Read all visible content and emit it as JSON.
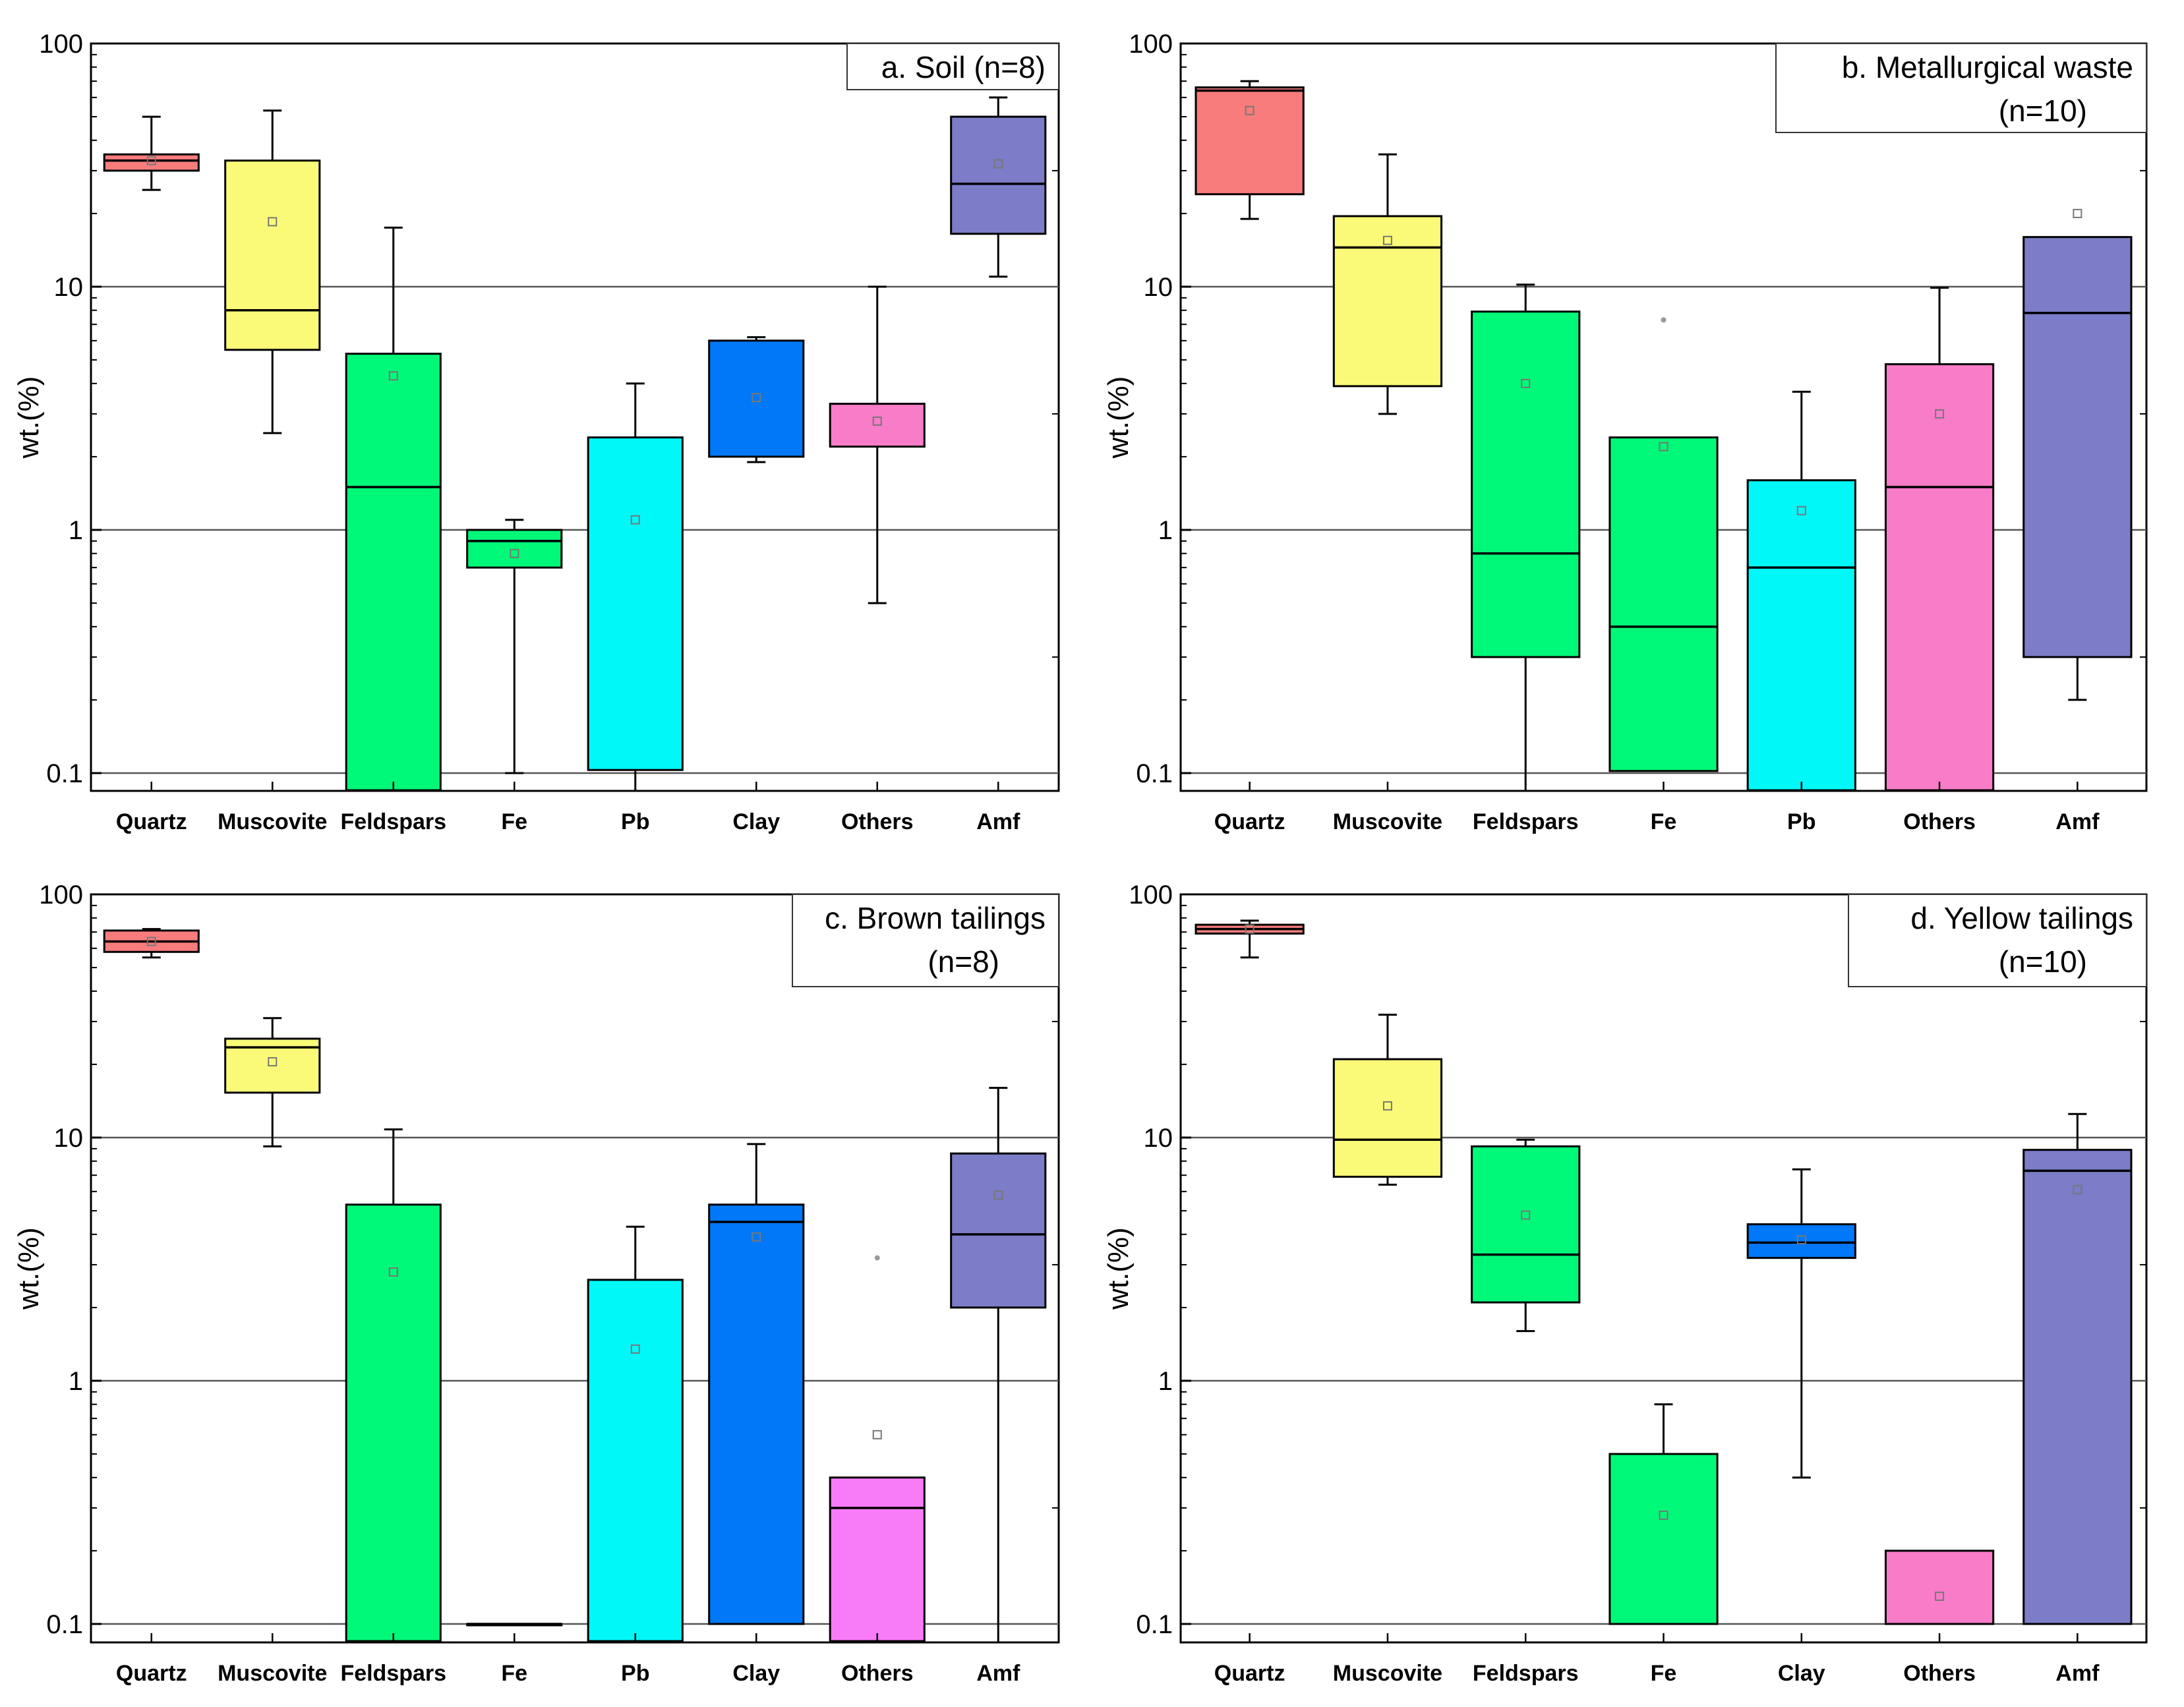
{
  "chart_data": [
    {
      "type": "boxplot",
      "title": "a. Soil (n=8)",
      "title_lines": [
        "a. Soil (n=8)"
      ],
      "ylabel": "wt.(%)",
      "yscale": "log",
      "ylim": [
        0.085,
        100
      ],
      "yticks": [
        "100",
        "10",
        "1",
        "0.1"
      ],
      "gridlines": [
        10,
        1,
        0.1
      ],
      "categories": [
        "Quartz",
        "Muscovite",
        "Feldspars",
        "Fe",
        "Pb",
        "Clay",
        "Others",
        "Amf"
      ],
      "boxes": [
        {
          "name": "Quartz",
          "color": "#f87c7c",
          "q1": 30,
          "median": 33,
          "q3": 35,
          "whisker_low": 25,
          "whisker_high": 50,
          "mean": 33
        },
        {
          "name": "Muscovite",
          "color": "#fafa78",
          "q1": 5.5,
          "median": 8,
          "q3": 33,
          "whisker_low": 2.5,
          "whisker_high": 53,
          "mean": 18.5
        },
        {
          "name": "Feldspars",
          "color": "#00f878",
          "q1": 0.085,
          "median": 1.5,
          "q3": 5.3,
          "whisker_low": null,
          "whisker_high": 17.5,
          "mean": 4.3
        },
        {
          "name": "Fe",
          "color": "#00f878",
          "q1": 0.7,
          "median": 0.9,
          "q3": 1.0,
          "whisker_low": 0.1,
          "whisker_high": 1.1,
          "mean": 0.8
        },
        {
          "name": "Pb",
          "color": "#00f8f8",
          "q1": 0.103,
          "median": null,
          "q3": 2.4,
          "whisker_low": 0.085,
          "whisker_high": 4.0,
          "mean": 1.1
        },
        {
          "name": "Clay",
          "color": "#0078f8",
          "q1": 2.0,
          "median": null,
          "q3": 6.0,
          "whisker_low": 1.9,
          "whisker_high": 6.2,
          "mean": 3.5
        },
        {
          "name": "Others",
          "color": "#f87cc8",
          "q1": 2.2,
          "median": null,
          "q3": 3.3,
          "whisker_low": 0.5,
          "whisker_high": 10,
          "mean": 2.8
        },
        {
          "name": "Amf",
          "color": "#7c7cc8",
          "q1": 16.5,
          "median": 26.5,
          "q3": 50,
          "whisker_low": 11,
          "whisker_high": 60,
          "mean": 32
        }
      ]
    },
    {
      "type": "boxplot",
      "title": "b. Metallurgical waste (n=10)",
      "title_lines": [
        "b. Metallurgical waste",
        "(n=10)"
      ],
      "ylabel": "wt.(%)",
      "yscale": "log",
      "ylim": [
        0.085,
        100
      ],
      "yticks": [
        "100",
        "10",
        "1",
        "0.1"
      ],
      "gridlines": [
        10,
        1,
        0.1
      ],
      "categories": [
        "Quartz",
        "Muscovite",
        "Feldspars",
        "Fe",
        "Pb",
        "Others",
        "Amf"
      ],
      "boxes": [
        {
          "name": "Quartz",
          "color": "#f87c7c",
          "q1": 24,
          "median": 64,
          "q3": 66,
          "whisker_low": 19,
          "whisker_high": 70,
          "mean": 53
        },
        {
          "name": "Muscovite",
          "color": "#fafa78",
          "q1": 3.9,
          "median": 14.5,
          "q3": 19.5,
          "whisker_low": 3.0,
          "whisker_high": 35,
          "mean": 15.5
        },
        {
          "name": "Feldspars",
          "color": "#00f878",
          "q1": 0.3,
          "median": 0.8,
          "q3": 7.9,
          "whisker_low": 0.085,
          "whisker_high": 10.2,
          "mean": 4.0
        },
        {
          "name": "Fe",
          "color": "#00f878",
          "q1": 0.102,
          "median": 0.4,
          "q3": 2.4,
          "whisker_low": null,
          "whisker_high": null,
          "mean": 2.2,
          "outlier": 7.3
        },
        {
          "name": "Pb",
          "color": "#00f8f8",
          "q1": 0.085,
          "median": 0.7,
          "q3": 1.6,
          "whisker_low": null,
          "whisker_high": 3.7,
          "mean": 1.2
        },
        {
          "name": "Others",
          "color": "#f87cc8",
          "q1": 0.085,
          "median": 1.5,
          "q3": 4.8,
          "whisker_low": null,
          "whisker_high": 9.9,
          "mean": 3.0
        },
        {
          "name": "Amf",
          "color": "#7c7cc8",
          "q1": 0.3,
          "median": 7.8,
          "q3": 16,
          "whisker_low": 0.2,
          "whisker_high": null,
          "mean": 20
        }
      ]
    },
    {
      "type": "boxplot",
      "title": "c. Brown tailings (n=8)",
      "title_lines": [
        "c. Brown tailings",
        "(n=8)"
      ],
      "ylabel": "wt.(%)",
      "yscale": "log",
      "ylim": [
        0.085,
        100
      ],
      "yticks": [
        "100",
        "10",
        "1",
        "0.1"
      ],
      "gridlines": [
        10,
        1,
        0.1
      ],
      "categories": [
        "Quartz",
        "Muscovite",
        "Feldspars",
        "Fe",
        "Pb",
        "Clay",
        "Others",
        "Amf"
      ],
      "boxes": [
        {
          "name": "Quartz",
          "color": "#f87c7c",
          "q1": 58,
          "median": 64,
          "q3": 71,
          "whisker_low": 55,
          "whisker_high": 72,
          "mean": 64
        },
        {
          "name": "Muscovite",
          "color": "#fafa78",
          "q1": 15.3,
          "median": 23.5,
          "q3": 25.5,
          "whisker_low": 9.2,
          "whisker_high": 31,
          "mean": 20.5
        },
        {
          "name": "Feldspars",
          "color": "#00f878",
          "q1": 0.085,
          "median": null,
          "q3": 5.3,
          "whisker_low": null,
          "whisker_high": 10.8,
          "mean": 2.8
        },
        {
          "name": "Fe",
          "color": "#00f878",
          "q1": 0.1,
          "median": 0.1,
          "q3": 0.1,
          "whisker_low": null,
          "whisker_high": null,
          "mean": null
        },
        {
          "name": "Pb",
          "color": "#00f8f8",
          "q1": 0.085,
          "median": null,
          "q3": 2.6,
          "whisker_low": null,
          "whisker_high": 4.3,
          "mean": 1.35
        },
        {
          "name": "Clay",
          "color": "#0078f8",
          "q1": 0.1,
          "median": 4.5,
          "q3": 5.3,
          "whisker_low": null,
          "whisker_high": 9.4,
          "mean": 3.9
        },
        {
          "name": "Others",
          "color": "#f87cf8",
          "q1": 0.085,
          "median": 0.3,
          "q3": 0.4,
          "whisker_low": null,
          "whisker_high": null,
          "mean": 0.6,
          "outlier": 3.2
        },
        {
          "name": "Amf",
          "color": "#7c7cc8",
          "q1": 2.0,
          "median": 4.0,
          "q3": 8.6,
          "whisker_low": 0.085,
          "whisker_high": 16,
          "mean": 5.8
        }
      ]
    },
    {
      "type": "boxplot",
      "title": "d. Yellow tailings (n=10)",
      "title_lines": [
        "d. Yellow tailings",
        "(n=10)"
      ],
      "ylabel": "wt.(%)",
      "yscale": "log",
      "ylim": [
        0.085,
        100
      ],
      "yticks": [
        "100",
        "10",
        "1",
        "0.1"
      ],
      "gridlines": [
        10,
        1,
        0.1
      ],
      "categories": [
        "Quartz",
        "Muscovite",
        "Feldspars",
        "Fe",
        "Clay",
        "Others",
        "Amf"
      ],
      "boxes": [
        {
          "name": "Quartz",
          "color": "#f87c7c",
          "q1": 69,
          "median": 72,
          "q3": 75,
          "whisker_low": 55,
          "whisker_high": 78,
          "mean": 72
        },
        {
          "name": "Muscovite",
          "color": "#fafa78",
          "q1": 6.9,
          "median": 9.8,
          "q3": 21,
          "whisker_low": 6.4,
          "whisker_high": 32,
          "mean": 13.5
        },
        {
          "name": "Feldspars",
          "color": "#00f878",
          "q1": 2.1,
          "median": 3.3,
          "q3": 9.2,
          "whisker_low": 1.6,
          "whisker_high": 9.8,
          "mean": 4.8
        },
        {
          "name": "Fe",
          "color": "#00f878",
          "q1": 0.1,
          "median": null,
          "q3": 0.5,
          "whisker_low": null,
          "whisker_high": 0.8,
          "mean": 0.28
        },
        {
          "name": "Clay",
          "color": "#0078f8",
          "q1": 3.2,
          "median": 3.7,
          "q3": 4.4,
          "whisker_low": 0.4,
          "whisker_high": 7.4,
          "mean": 3.8
        },
        {
          "name": "Others",
          "color": "#f87cc8",
          "q1": 0.1,
          "median": null,
          "q3": 0.2,
          "whisker_low": null,
          "whisker_high": null,
          "mean": 0.13
        },
        {
          "name": "Amf",
          "color": "#7c7cc8",
          "q1": 0.1,
          "median": 7.3,
          "q3": 8.9,
          "whisker_low": null,
          "whisker_high": 12.5,
          "mean": 6.1
        }
      ]
    }
  ]
}
